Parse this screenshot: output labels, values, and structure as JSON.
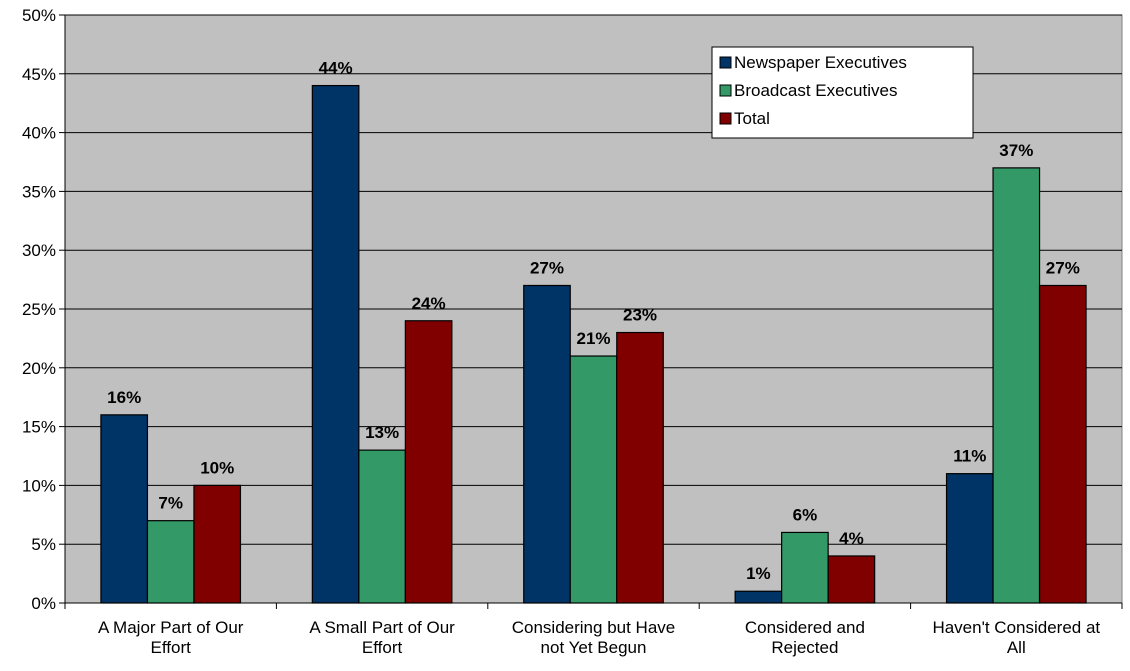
{
  "chart_data": {
    "type": "bar",
    "categories": [
      [
        "A Major Part of Our",
        "Effort"
      ],
      [
        "A Small Part of Our",
        "Effort"
      ],
      [
        "Considering but Have",
        "not Yet Begun"
      ],
      [
        "Considered and",
        "Rejected"
      ],
      [
        "Haven't Considered at",
        "All"
      ]
    ],
    "series": [
      {
        "name": "Newspaper Executives",
        "color": "#003366",
        "values": [
          16,
          44,
          27,
          1,
          11
        ],
        "labels": [
          "16%",
          "44%",
          "27%",
          "1%",
          "11%"
        ]
      },
      {
        "name": "Broadcast Executives",
        "color": "#339966",
        "values": [
          7,
          13,
          21,
          6,
          37
        ],
        "labels": [
          "7%",
          "13%",
          "21%",
          "6%",
          "37%"
        ]
      },
      {
        "name": "Total",
        "color": "#800000",
        "values": [
          10,
          24,
          23,
          4,
          27
        ],
        "labels": [
          "10%",
          "24%",
          "23%",
          "4%",
          "27%"
        ]
      }
    ],
    "ylim": [
      0,
      50
    ],
    "yticks": [
      "0%",
      "5%",
      "10%",
      "15%",
      "20%",
      "25%",
      "30%",
      "35%",
      "40%",
      "45%",
      "50%"
    ],
    "grid": true,
    "legend_position": "top-right",
    "plot_background": "#c0c0c0"
  }
}
